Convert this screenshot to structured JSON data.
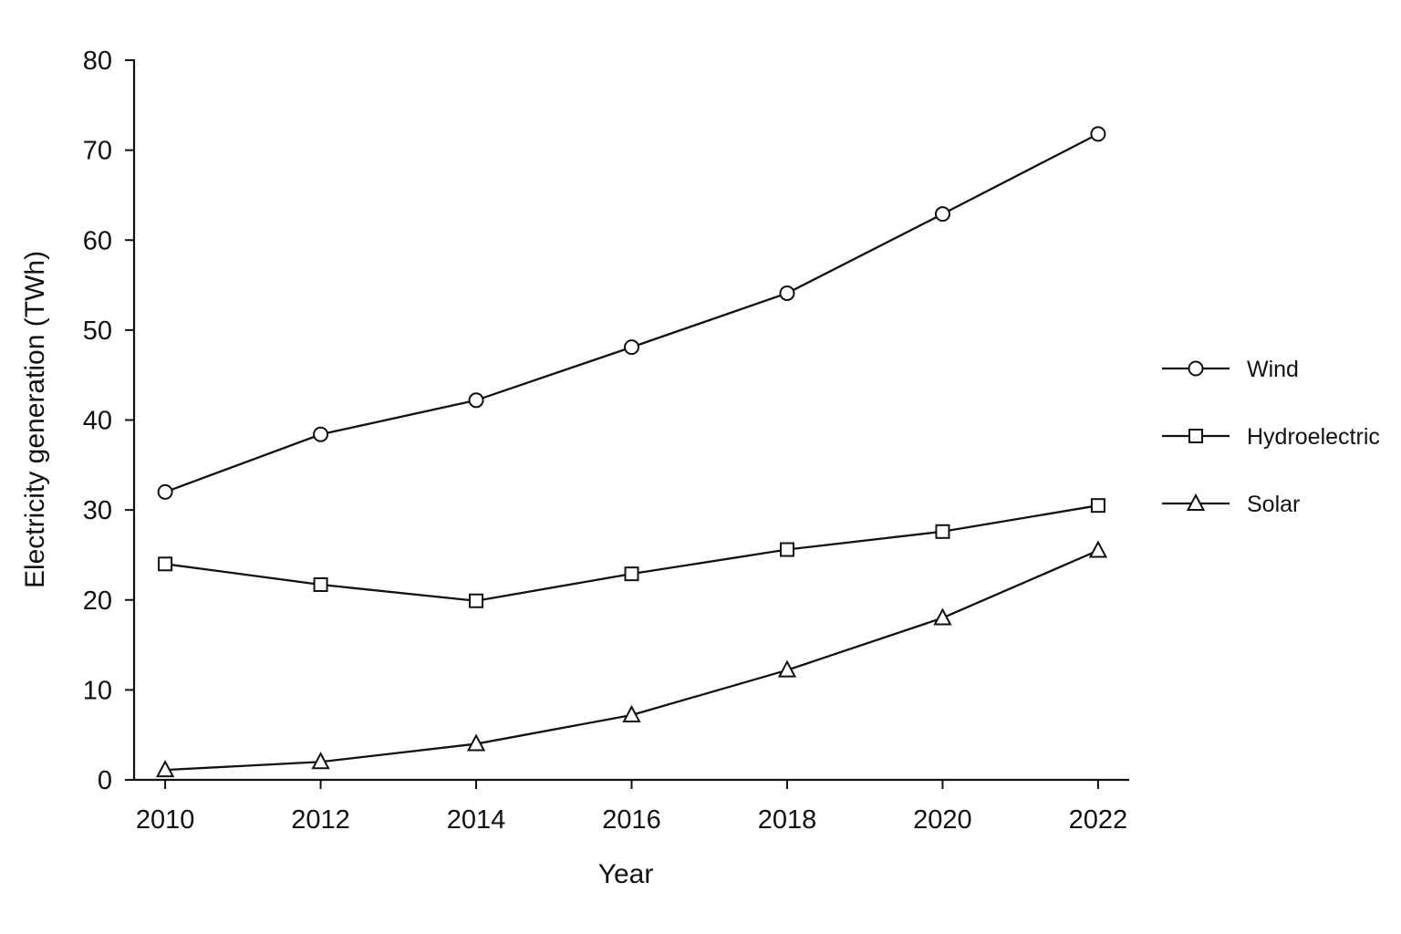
{
  "chart_data": {
    "type": "line",
    "title": "",
    "xlabel": "Year",
    "ylabel": "Electricity generation (TWh)",
    "x": [
      2010,
      2012,
      2014,
      2016,
      2018,
      2020,
      2022
    ],
    "xticks": [
      2010,
      2012,
      2014,
      2016,
      2018,
      2020,
      2022
    ],
    "yticks": [
      0,
      10,
      20,
      30,
      40,
      50,
      60,
      70,
      80
    ],
    "xlim": [
      2009.6,
      2022.4
    ],
    "ylim": [
      0,
      80
    ],
    "grid": false,
    "legend_position": "right",
    "series": [
      {
        "name": "Wind",
        "marker": "circle",
        "values": [
          32.0,
          38.4,
          42.2,
          48.1,
          54.1,
          62.9,
          71.8
        ]
      },
      {
        "name": "Hydroelectric",
        "marker": "square",
        "values": [
          24.0,
          21.7,
          19.9,
          22.9,
          25.6,
          27.6,
          30.5
        ]
      },
      {
        "name": "Solar",
        "marker": "triangle",
        "values": [
          1.1,
          2.0,
          4.0,
          7.2,
          12.2,
          18.0,
          25.5
        ]
      }
    ],
    "colors": {
      "line": "#111111",
      "marker_fill": "#ffffff",
      "background": "#ffffff"
    }
  }
}
